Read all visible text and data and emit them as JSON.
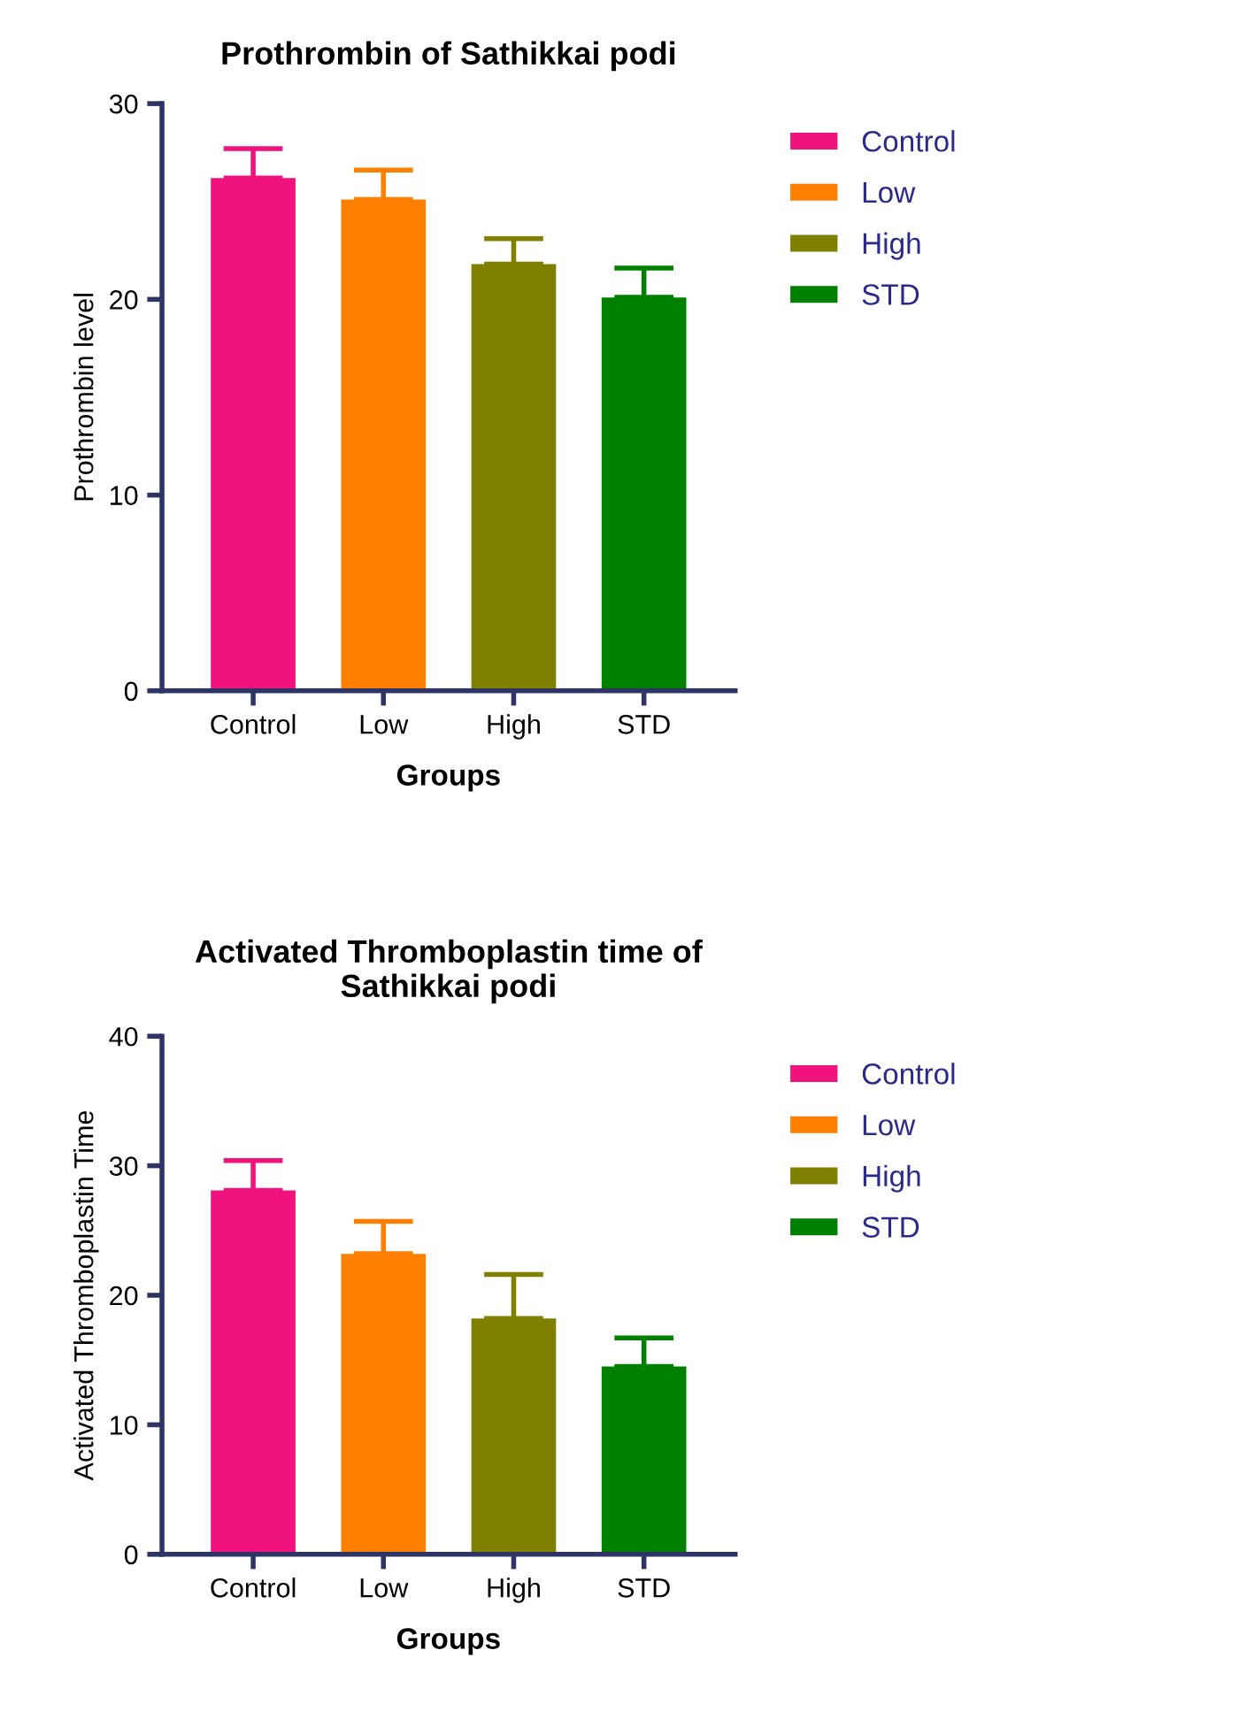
{
  "chart_data": [
    {
      "type": "bar",
      "title": "Prothrombin of Sathikkai podi",
      "xlabel": "Groups",
      "ylabel": "Prothrombin level",
      "categories": [
        "Control",
        "Low",
        "High",
        "STD"
      ],
      "ylim": [
        0,
        30
      ],
      "yticks": [
        0,
        10,
        20,
        30
      ],
      "legend": "right",
      "grid": false,
      "series": [
        {
          "name": "Control",
          "color": "#f0137e",
          "values": [
            26.2,
            null,
            null,
            null
          ],
          "errors": [
            [
              26.2,
              27.7
            ],
            null,
            null,
            null
          ]
        },
        {
          "name": "Low",
          "color": "#ff8000",
          "values": [
            null,
            25.1,
            null,
            null
          ],
          "errors": [
            null,
            [
              25.1,
              26.6
            ],
            null,
            null
          ]
        },
        {
          "name": "High",
          "color": "#808000",
          "values": [
            null,
            null,
            21.8,
            null
          ],
          "errors": [
            null,
            null,
            [
              21.8,
              23.1
            ],
            null
          ]
        },
        {
          "name": "STD",
          "color": "#008000",
          "values": [
            null,
            null,
            null,
            20.1
          ],
          "errors": [
            null,
            null,
            null,
            [
              20.1,
              21.6
            ]
          ]
        }
      ]
    },
    {
      "type": "bar",
      "title": "Activated Thromboplastin time of\nSathikkai podi",
      "xlabel": "Groups",
      "ylabel": "Activated Thromboplastin Time",
      "categories": [
        "Control",
        "Low",
        "High",
        "STD"
      ],
      "ylim": [
        0,
        40
      ],
      "yticks": [
        0,
        10,
        20,
        30,
        40
      ],
      "legend": "right",
      "grid": false,
      "series": [
        {
          "name": "Control",
          "color": "#f0137e",
          "values": [
            28.1,
            null,
            null,
            null
          ],
          "errors": [
            [
              28.1,
              30.4
            ],
            null,
            null,
            null
          ]
        },
        {
          "name": "Low",
          "color": "#ff8000",
          "values": [
            null,
            23.2,
            null,
            null
          ],
          "errors": [
            null,
            [
              23.2,
              25.7
            ],
            null,
            null
          ]
        },
        {
          "name": "High",
          "color": "#808000",
          "values": [
            null,
            null,
            18.2,
            null
          ],
          "errors": [
            null,
            null,
            [
              18.2,
              21.6
            ],
            null
          ]
        },
        {
          "name": "STD",
          "color": "#008000",
          "values": [
            null,
            null,
            null,
            14.5
          ],
          "errors": [
            null,
            null,
            null,
            [
              14.5,
              16.7
            ]
          ]
        }
      ]
    }
  ]
}
